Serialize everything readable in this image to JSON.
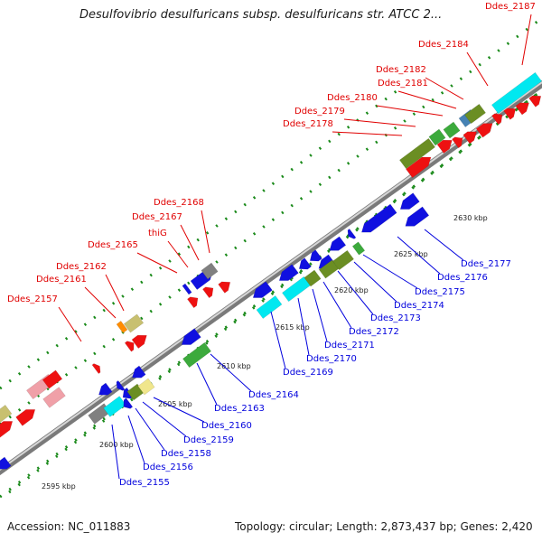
{
  "title": "Desulfovibrio desulfuricans subsp. desulfuricans str. ATCC 2...",
  "footer": {
    "accession": "Accession: NC_011883",
    "summary": "Topology: circular; Length: 2,873,437 bp; Genes: 2,420"
  },
  "colors": {
    "forward_label": "#e00000",
    "reverse_label": "#0000dd",
    "red": "#ee1111",
    "blue": "#1010e0",
    "cyan": "#00e8f0",
    "olive": "#6b8e23",
    "green": "#3caa3c",
    "pink": "#f0a0a8",
    "khaki": "#c8c070",
    "orange": "#ff8c00",
    "gray": "#808080",
    "steelblue": "#4682b4",
    "lightyellow": "#f0e68c"
  },
  "scale_labels": [
    "2595 kbp",
    "2600 kbp",
    "2605 kbp",
    "2610 kbp",
    "2615 kbp",
    "2620 kbp",
    "2625 kbp",
    "2630 kbp"
  ],
  "forward_labels": [
    "Ddes_2157",
    "Ddes_2161",
    "Ddes_2162",
    "Ddes_2165",
    "thiG",
    "Ddes_2167",
    "Ddes_2168",
    "Ddes_2178",
    "Ddes_2179",
    "Ddes_2180",
    "Ddes_2181",
    "Ddes_2182",
    "Ddes_2184",
    "Ddes_2187"
  ],
  "reverse_labels": [
    "Ddes_2155",
    "Ddes_2156",
    "Ddes_2158",
    "Ddes_2159",
    "Ddes_2160",
    "Ddes_2163",
    "Ddes_2164",
    "Ddes_2169",
    "Ddes_2170",
    "Ddes_2171",
    "Ddes_2172",
    "Ddes_2173",
    "Ddes_2174",
    "Ddes_2175",
    "Ddes_2176",
    "Ddes_2177"
  ]
}
